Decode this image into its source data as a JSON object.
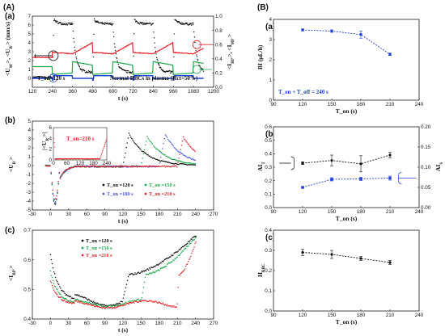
{
  "figure": {
    "left_label": "(A)",
    "right_label": "(B)"
  },
  "colors": {
    "black": "#111111",
    "red": "#e8232a",
    "green": "#1aa84a",
    "blue": "#1f3fd6",
    "violet": "#4a55f0",
    "gray": "#777777"
  },
  "chart_data": [
    {
      "id": "Aa",
      "panel": "(a)",
      "type": "line",
      "xlim": [
        120,
        1200
      ],
      "xticks": [
        120,
        240,
        360,
        480,
        600,
        720,
        840,
        960,
        1080,
        1200
      ],
      "ylim_left": [
        -1,
        7
      ],
      "yticks_left": [
        0,
        1,
        2,
        3,
        4,
        5,
        6,
        7
      ],
      "ylim_right": [
        0,
        1.0
      ],
      "yticks_right": [
        0.0,
        0.2,
        0.4,
        0.6,
        0.8,
        1.0
      ],
      "xlabel": "t (s)",
      "ylabel_left": "<U_M'>, <U_R'> (mm/s)",
      "ylabel_right": "<I_RP'>, <I_MF'>",
      "annotations": [
        "T_on=120 s",
        "Normal RBCs in plasma (Hct=50%)"
      ],
      "cycle": {
        "t_start": 240,
        "period": 240,
        "t_on": 120,
        "n_cycles": 4
      },
      "series": [
        {
          "name": "<U_M'>",
          "axis": "left",
          "off_value": 0.0,
          "on_value": 0.3,
          "onset_dip": -0.2
        },
        {
          "name": "<U_R'>",
          "axis": "left",
          "rise_peak": 6.6,
          "plateau": 6.1,
          "decay_floor": 0.7
        },
        {
          "name": "<I_RP'>",
          "axis": "right",
          "base": 0.42,
          "jump": 0.49,
          "plateau": 0.47,
          "late_rise": 0.63
        },
        {
          "name": "<I_MF'>",
          "axis": "right",
          "base": 0.29,
          "dip": 0.18,
          "rise": 0.36
        }
      ]
    },
    {
      "id": "Ab",
      "panel": "(b)",
      "type": "line",
      "xlim": [
        -30,
        270
      ],
      "xticks": [
        -30,
        0,
        30,
        60,
        90,
        120,
        150,
        180,
        210,
        240,
        270
      ],
      "ylim": [
        -5,
        5
      ],
      "yticks": [
        -5,
        -4,
        -3,
        -2,
        -1,
        0,
        1,
        2,
        3,
        4,
        5
      ],
      "xlabel": "t (s)",
      "ylabel": "<U_R'>",
      "legend": [
        "T_on =120 s",
        "T_on =150 s",
        "T_on =180 s",
        "T_on =210 s"
      ],
      "series": [
        {
          "name": "T_on =120 s",
          "t_on": 120,
          "peak": 3.6,
          "min": -4.6
        },
        {
          "name": "T_on =150 s",
          "t_on": 150,
          "peak": 3.3,
          "min": -4.5
        },
        {
          "name": "T_on =180 s",
          "t_on": 180,
          "peak": 3.5,
          "min": -4.4
        },
        {
          "name": "T_on =210 s",
          "t_on": 210,
          "peak": 3.2,
          "min": -4.0
        }
      ],
      "inset": {
        "xlim": [
          0,
          240
        ],
        "xticks": [
          0,
          60,
          120,
          180,
          240
        ],
        "ylim": [
          0,
          6
        ],
        "yticks": [
          0,
          2,
          4,
          6
        ],
        "ylabel": "|<U_R'>|",
        "annotation": "T_on=210 s"
      }
    },
    {
      "id": "Ac",
      "panel": "(c)",
      "type": "scatter",
      "xlim": [
        -30,
        270
      ],
      "xticks": [
        -30,
        0,
        30,
        60,
        90,
        120,
        150,
        180,
        210,
        240,
        270
      ],
      "ylim": [
        0.4,
        0.7
      ],
      "yticks": [
        0.4,
        0.5,
        0.6,
        0.7
      ],
      "xlabel": "t (s)",
      "ylabel": "<I_RP'>",
      "legend": [
        "T_on =120 s",
        "T_on =150 s",
        "T_on =210 s"
      ],
      "series": [
        {
          "name": "T_on =120 s",
          "t_on": 120,
          "start": 0.62,
          "floor": 0.465,
          "end": 0.685
        },
        {
          "name": "T_on =150 s",
          "t_on": 150,
          "start": 0.56,
          "floor": 0.455,
          "end": 0.68
        },
        {
          "name": "T_on =210 s",
          "t_on": 210,
          "start": 0.53,
          "floor": 0.45,
          "end": 0.67
        }
      ]
    },
    {
      "id": "Ba",
      "panel": "(a)",
      "type": "line",
      "xlim": [
        90,
        240
      ],
      "xticks": [
        90,
        120,
        150,
        180,
        210,
        240
      ],
      "ylim": [
        0,
        4
      ],
      "yticks": [
        0,
        1,
        2,
        3,
        4
      ],
      "xlabel": "T_on (s)",
      "ylabel": "BI (μL/h)",
      "annotation": "T_on + T_off = 240 s",
      "x": [
        120,
        150,
        180,
        210
      ],
      "y": [
        3.48,
        3.42,
        3.25,
        2.27
      ],
      "err": [
        0.05,
        0.06,
        0.18,
        0.06
      ]
    },
    {
      "id": "Bb",
      "panel": "(b)",
      "type": "line",
      "xlim": [
        90,
        240
      ],
      "xticks": [
        90,
        120,
        150,
        180,
        210,
        240
      ],
      "ylim_left": [
        0,
        0.6
      ],
      "yticks_left": [
        0.0,
        0.1,
        0.2,
        0.3,
        0.4,
        0.5,
        0.6
      ],
      "ylim_right": [
        0,
        0.2
      ],
      "yticks_right": [
        0.0,
        0.05,
        0.1,
        0.15,
        0.2
      ],
      "xlabel": "T_on (s)",
      "ylabel_left": "AI_T",
      "ylabel_right": "AI_S",
      "x": [
        120,
        150,
        180,
        210
      ],
      "series": [
        {
          "name": "AI_T",
          "axis": "left",
          "y": [
            0.33,
            0.35,
            0.325,
            0.39
          ],
          "err": [
            0.01,
            0.04,
            0.06,
            0.02
          ]
        },
        {
          "name": "AI_S",
          "axis": "right",
          "y": [
            0.05,
            0.07,
            0.071,
            0.073
          ],
          "err": [
            0.002,
            0.004,
            0.004,
            0.005
          ]
        }
      ]
    },
    {
      "id": "Bc",
      "panel": "(c)",
      "type": "line",
      "xlim": [
        90,
        240
      ],
      "xticks": [
        90,
        120,
        150,
        180,
        210,
        240
      ],
      "ylim": [
        0,
        0.4
      ],
      "yticks": [
        0.0,
        0.1,
        0.2,
        0.3,
        0.4
      ],
      "xlabel": "T_on (s)",
      "ylabel": "H_RBC",
      "x": [
        120,
        150,
        180,
        210
      ],
      "y": [
        0.29,
        0.28,
        0.26,
        0.24
      ],
      "err": [
        0.015,
        0.02,
        0.01,
        0.01
      ]
    }
  ]
}
